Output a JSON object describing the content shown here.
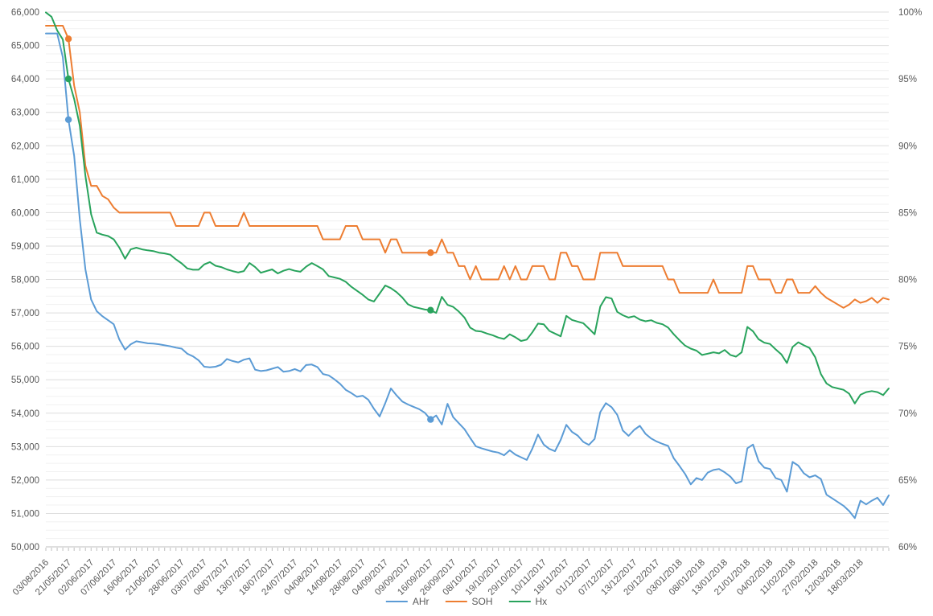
{
  "chart_data": {
    "type": "line",
    "title": "",
    "n_points": 150,
    "label_every": 4,
    "x_tick_labels": [
      "03/08/2016",
      "21/05/2017",
      "02/06/2017",
      "07/06/2017",
      "16/06/2017",
      "21/06/2017",
      "28/06/2017",
      "03/07/2017",
      "08/07/2017",
      "13/07/2017",
      "18/07/2017",
      "24/07/2017",
      "04/08/2017",
      "14/08/2017",
      "28/08/2017",
      "04/09/2017",
      "09/09/2017",
      "16/09/2017",
      "26/09/2017",
      "08/10/2017",
      "19/10/2017",
      "29/10/2017",
      "10/11/2017",
      "18/11/2017",
      "01/12/2017",
      "07/12/2017",
      "13/12/2017",
      "20/12/2017",
      "03/01/2018",
      "08/01/2018",
      "13/01/2018",
      "21/01/2018",
      "04/02/2018",
      "11/02/2018",
      "27/02/2018",
      "12/03/2018",
      "18/03/2018"
    ],
    "left_axis": {
      "min": 50000,
      "max": 66000,
      "major_step": 1000,
      "minor_step": 250,
      "labels": [
        "50,000",
        "51,000",
        "52,000",
        "53,000",
        "54,000",
        "55,000",
        "56,000",
        "57,000",
        "58,000",
        "59,000",
        "60,000",
        "61,000",
        "62,000",
        "63,000",
        "64,000",
        "65,000",
        "66,000"
      ]
    },
    "right_axis": {
      "min": 60,
      "max": 100,
      "step": 5,
      "labels": [
        "60%",
        "65%",
        "70%",
        "75%",
        "80%",
        "85%",
        "90%",
        "95%",
        "100%"
      ]
    },
    "grid": {
      "minor_color": "#f1f1f1",
      "major_color": "#dedede",
      "baseline_color": "#bfbfbf",
      "tick_color": "#bfbfbf",
      "text_color": "#595959"
    },
    "legend": {
      "position": "bottom-center"
    },
    "series": [
      {
        "name": "AHr",
        "color": "#5b9bd5",
        "values": [
          65360,
          65360,
          65360,
          64650,
          62780,
          61700,
          59800,
          58300,
          57400,
          57050,
          56900,
          56780,
          56660,
          56200,
          55900,
          56060,
          56150,
          56120,
          56090,
          56080,
          56060,
          56030,
          56000,
          55960,
          55930,
          55780,
          55700,
          55580,
          55390,
          55370,
          55390,
          55450,
          55620,
          55560,
          55520,
          55600,
          55640,
          55300,
          55260,
          55280,
          55330,
          55380,
          55240,
          55260,
          55320,
          55250,
          55440,
          55455,
          55380,
          55170,
          55130,
          55015,
          54880,
          54700,
          54600,
          54490,
          54520,
          54400,
          54130,
          53900,
          54300,
          54740,
          54530,
          54350,
          54260,
          54190,
          54120,
          54010,
          53810,
          53930,
          53660,
          54280,
          53880,
          53700,
          53520,
          53260,
          53010,
          52950,
          52900,
          52850,
          52820,
          52740,
          52890,
          52760,
          52680,
          52600,
          52940,
          53360,
          53060,
          52930,
          52860,
          53200,
          53650,
          53440,
          53330,
          53140,
          53050,
          53230,
          54030,
          54300,
          54180,
          53950,
          53480,
          53320,
          53500,
          53620,
          53380,
          53240,
          53150,
          53080,
          53020,
          52650,
          52420,
          52180,
          51870,
          52060,
          52000,
          52220,
          52300,
          52330,
          52230,
          52100,
          51900,
          51960,
          52950,
          53060,
          52560,
          52370,
          52330,
          52060,
          52000,
          51650,
          52540,
          52430,
          52200,
          52080,
          52140,
          52030,
          51560,
          51450,
          51340,
          51230,
          51070,
          50860,
          51380,
          51270,
          51380,
          51470,
          51250,
          51540
        ]
      },
      {
        "name": "SOH",
        "color": "#ed7d31",
        "values": [
          65590,
          65590,
          65590,
          65590,
          65200,
          63800,
          63000,
          61400,
          60800,
          60800,
          60500,
          60400,
          60150,
          60000,
          60000,
          60000,
          60000,
          60000,
          60000,
          60000,
          60000,
          60000,
          60000,
          59600,
          59600,
          59600,
          59600,
          59600,
          60000,
          60000,
          59600,
          59600,
          59600,
          59600,
          59600,
          60000,
          59600,
          59600,
          59600,
          59600,
          59600,
          59600,
          59600,
          59600,
          59600,
          59600,
          59600,
          59600,
          59600,
          59200,
          59200,
          59200,
          59200,
          59600,
          59600,
          59600,
          59200,
          59200,
          59200,
          59200,
          58800,
          59200,
          59200,
          58800,
          58800,
          58800,
          58800,
          58800,
          58800,
          58800,
          59200,
          58800,
          58800,
          58400,
          58400,
          58000,
          58400,
          58000,
          58000,
          58000,
          58000,
          58400,
          58000,
          58400,
          58000,
          58000,
          58400,
          58400,
          58400,
          58000,
          58000,
          58800,
          58800,
          58400,
          58400,
          58000,
          58000,
          58000,
          58800,
          58800,
          58800,
          58800,
          58400,
          58400,
          58400,
          58400,
          58400,
          58400,
          58400,
          58400,
          58000,
          58000,
          57600,
          57600,
          57600,
          57600,
          57600,
          57600,
          58000,
          57600,
          57600,
          57600,
          57600,
          57600,
          58400,
          58400,
          58000,
          58000,
          58000,
          57600,
          57600,
          58000,
          58000,
          57600,
          57600,
          57600,
          57800,
          57600,
          57450,
          57350,
          57250,
          57150,
          57250,
          57400,
          57300,
          57350,
          57450,
          57300,
          57450,
          57400
        ]
      },
      {
        "name": "Hx",
        "color": "#28a35c",
        "values": [
          65990,
          65860,
          65450,
          65180,
          64000,
          63400,
          62600,
          61100,
          59950,
          59400,
          59340,
          59300,
          59200,
          58950,
          58620,
          58900,
          58950,
          58900,
          58870,
          58850,
          58800,
          58780,
          58740,
          58600,
          58480,
          58330,
          58290,
          58290,
          58450,
          58520,
          58410,
          58370,
          58300,
          58250,
          58210,
          58250,
          58490,
          58370,
          58200,
          58250,
          58300,
          58180,
          58260,
          58310,
          58260,
          58230,
          58380,
          58490,
          58400,
          58300,
          58100,
          58060,
          58020,
          57930,
          57780,
          57660,
          57540,
          57400,
          57340,
          57580,
          57820,
          57740,
          57620,
          57460,
          57260,
          57180,
          57140,
          57100,
          57080,
          57000,
          57480,
          57240,
          57180,
          57040,
          56860,
          56560,
          56460,
          56440,
          56380,
          56330,
          56260,
          56220,
          56360,
          56270,
          56160,
          56200,
          56420,
          56680,
          56660,
          56460,
          56380,
          56300,
          56910,
          56790,
          56740,
          56690,
          56530,
          56360,
          57190,
          57470,
          57430,
          57030,
          56930,
          56860,
          56900,
          56800,
          56750,
          56780,
          56700,
          56660,
          56560,
          56360,
          56180,
          56020,
          55930,
          55870,
          55740,
          55780,
          55820,
          55790,
          55890,
          55740,
          55690,
          55820,
          56580,
          56450,
          56210,
          56110,
          56070,
          55910,
          55760,
          55500,
          55980,
          56120,
          56030,
          55950,
          55670,
          55170,
          54890,
          54780,
          54740,
          54700,
          54580,
          54290,
          54550,
          54630,
          54660,
          54630,
          54540,
          54740
        ]
      }
    ],
    "markers": [
      {
        "series": "AHr",
        "index": 4
      },
      {
        "series": "SOH",
        "index": 4
      },
      {
        "series": "Hx",
        "index": 4
      },
      {
        "series": "AHr",
        "index": 68
      },
      {
        "series": "SOH",
        "index": 68
      },
      {
        "series": "Hx",
        "index": 68
      }
    ]
  }
}
